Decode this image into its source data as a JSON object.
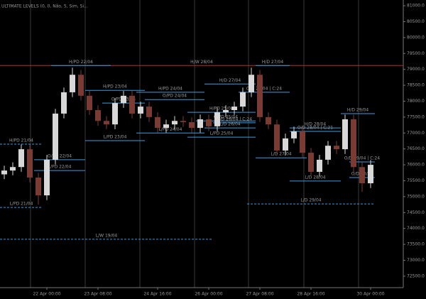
{
  "chart_data": {
    "type": "candlestick",
    "title": "ULTIMATE LEVELS (0, 0, Não, 5, Sim, Si...",
    "up_color": "#d8d8d8",
    "down_color": "#7a3b33",
    "categories": [
      null,
      null,
      null,
      null,
      null,
      "22 Apr 00:00",
      null,
      null,
      null,
      null,
      null,
      "23 Apr 08:00",
      null,
      null,
      null,
      null,
      null,
      null,
      "24 Apr 16:00",
      null,
      null,
      null,
      null,
      null,
      "26 Apr 00:00",
      null,
      null,
      null,
      null,
      null,
      "27 Apr 08:00",
      null,
      null,
      null,
      null,
      null,
      "28 Apr 16:00",
      null,
      null,
      null,
      null,
      null,
      null,
      "30 Apr 00:00"
    ],
    "open": [
      75700,
      75820,
      75930,
      76490,
      75600,
      75040,
      76160,
      77610,
      78280,
      78830,
      78170,
      77720,
      77380,
      77270,
      77940,
      78170,
      77610,
      77830,
      77500,
      77160,
      77270,
      77380,
      77340,
      77160,
      77430,
      77210,
      77650,
      77720,
      77830,
      78280,
      78830,
      77500,
      77270,
      76450,
      76830,
      77050,
      76380,
      75780,
      76160,
      76600,
      76490,
      77430,
      75930,
      75420
    ],
    "high": [
      75970,
      76080,
      76640,
      76640,
      75750,
      76310,
      77760,
      78430,
      79050,
      78980,
      78320,
      77870,
      77530,
      78090,
      78320,
      78320,
      77980,
      77980,
      77650,
      77420,
      77530,
      77530,
      77490,
      77580,
      77580,
      77800,
      77870,
      77980,
      78430,
      79050,
      78980,
      77650,
      77420,
      76980,
      77200,
      77200,
      76530,
      76310,
      76750,
      76750,
      77580,
      77580,
      76080,
      76150
    ],
    "low": [
      75550,
      75670,
      75780,
      75450,
      74750,
      74890,
      76010,
      77460,
      78130,
      78020,
      77570,
      77230,
      77120,
      77120,
      77790,
      77460,
      77460,
      77350,
      77010,
      77010,
      77120,
      77190,
      77010,
      77010,
      77060,
      77060,
      77500,
      77570,
      77680,
      78130,
      77350,
      77120,
      76300,
      76300,
      76680,
      76230,
      75630,
      75630,
      76010,
      76340,
      76340,
      75780,
      75150,
      75270
    ],
    "close": [
      75820,
      75930,
      76490,
      75600,
      75040,
      76160,
      77610,
      78280,
      78830,
      78170,
      77720,
      77380,
      77270,
      77940,
      78170,
      77610,
      77830,
      77500,
      77160,
      77270,
      77380,
      77340,
      77160,
      77430,
      77210,
      77650,
      77720,
      77830,
      78280,
      78830,
      77500,
      77270,
      76450,
      76830,
      77050,
      76380,
      75780,
      76160,
      76600,
      76490,
      77430,
      75930,
      75420,
      76000
    ],
    "ylim": [
      72140,
      81180
    ],
    "yticks": [
      {
        "value": 72500,
        "label": "72500.0"
      },
      {
        "value": 73000,
        "label": "73000.0"
      },
      {
        "value": 73500,
        "label": "73500.0"
      },
      {
        "value": 74000,
        "label": "74000.0"
      },
      {
        "value": 74500,
        "label": "74500.0"
      },
      {
        "value": 75000,
        "label": "75000.0"
      },
      {
        "value": 75500,
        "label": "75500.0"
      },
      {
        "value": 76000,
        "label": "76000.0"
      },
      {
        "value": 76500,
        "label": "76500.0"
      },
      {
        "value": 77000,
        "label": "77000.0"
      },
      {
        "value": 77500,
        "label": "77500.0"
      },
      {
        "value": 78000,
        "label": "78000.0"
      },
      {
        "value": 78500,
        "label": "78500.0"
      },
      {
        "value": 79000,
        "label": "79000.0"
      },
      {
        "value": 79500,
        "label": "79500.0"
      },
      {
        "value": 80000,
        "label": "80000.0"
      },
      {
        "value": 80500,
        "label": "80500.0"
      },
      {
        "value": 81000,
        "label": "81000.0"
      }
    ],
    "levels": [
      {
        "label": "H/W 28/04",
        "value": 79120,
        "start": 0,
        "end": 43,
        "color": "#b03030"
      },
      {
        "label": "H/PD 22/04",
        "value": 79120,
        "start": 6,
        "end": 12,
        "color": "#3d9be0"
      },
      {
        "label": "H/D 27/04",
        "value": 79120,
        "start": 30,
        "end": 33,
        "color": "#3d9be0"
      },
      {
        "label": "H/PD 23/04",
        "value": 78340,
        "start": 10,
        "end": 16,
        "color": "#3d9be0"
      },
      {
        "label": "H/PD 24/04",
        "value": 78280,
        "start": 16,
        "end": 23,
        "color": "#3d9be0"
      },
      {
        "label": "O/PD 24/04",
        "value": 78050,
        "start": 17,
        "end": 23,
        "color": "#3d9be0"
      },
      {
        "label": "O/PD 23/04",
        "value": 77940,
        "start": 12,
        "end": 16,
        "color": "#3d9be0"
      },
      {
        "label": "H/PD 25/04",
        "value": 77650,
        "start": 22,
        "end": 29,
        "color": "#3d9be0"
      },
      {
        "label": "O/PD 25/04",
        "value": 77380,
        "start": 23,
        "end": 29,
        "color": "#3d9be0"
      },
      {
        "label": "L/PD 24/04",
        "value": 77000,
        "start": 16,
        "end": 23,
        "color": "#3d9be0"
      },
      {
        "label": "L/PD 25/04",
        "value": 76870,
        "start": 22,
        "end": 29,
        "color": "#3d9be0"
      },
      {
        "label": "L/PD 23/04",
        "value": 76760,
        "start": 10,
        "end": 16,
        "color": "#3d9be0"
      },
      {
        "label": "H/D 27/04",
        "value": 78540,
        "start": 24,
        "end": 29,
        "color": "#3d9be0"
      },
      {
        "label": "O/D 27/04 | C:24",
        "value": 78280,
        "start": 28,
        "end": 33,
        "color": "#3d9be0"
      },
      {
        "label": "O/D 26/04 | C:24",
        "value": 77320,
        "start": 25,
        "end": 29,
        "color": "#3d9be0"
      },
      {
        "label": "L/D 26/04",
        "value": 77160,
        "start": 24,
        "end": 29,
        "color": "#3d9be0"
      },
      {
        "label": "L/D 27/04",
        "value": 76220,
        "start": 30,
        "end": 35,
        "color": "#3d9be0"
      },
      {
        "label": "H/D 28/04",
        "value": 77160,
        "start": 34,
        "end": 39,
        "color": "#3d9be0"
      },
      {
        "label": "O/D 28/04 | C:21",
        "value": 77050,
        "start": 34,
        "end": 39,
        "color": "#3d9be0"
      },
      {
        "label": "L/D 28/04",
        "value": 75490,
        "start": 34,
        "end": 39,
        "color": "#3d9be0"
      },
      {
        "label": "H/D 29/04",
        "value": 77610,
        "start": 40,
        "end": 43,
        "color": "#3d9be0"
      },
      {
        "label": "O/D 29/04 | C:24",
        "value": 76090,
        "start": 41,
        "end": 43,
        "color": "#3d9be0"
      },
      {
        "label": "O/D 30/04",
        "value": 75600,
        "start": 41,
        "end": 43,
        "color": "#3d9be0"
      },
      {
        "label": "L/D 29/04",
        "value": 74770,
        "start": 29,
        "end": 43,
        "color": "#3d9be0",
        "dashed": true
      },
      {
        "label": "H/PD 21/04",
        "value": 76650,
        "start": 0,
        "end": 4,
        "color": "#3d9be0",
        "dashed": true
      },
      {
        "label": "O/PD 22/04",
        "value": 76160,
        "start": 4,
        "end": 9,
        "color": "#3d9be0"
      },
      {
        "label": "L/PD 22/04",
        "value": 75820,
        "start": 4,
        "end": 9,
        "color": "#3d9be0"
      },
      {
        "label": "L/PD 21/04",
        "value": 74660,
        "start": 0,
        "end": 4,
        "color": "#3d9be0",
        "dashed": true
      },
      {
        "label": "L/W 19/04",
        "value": 73660,
        "start": 0,
        "end": 24,
        "color": "#3d9be0",
        "dashed": true
      }
    ]
  }
}
